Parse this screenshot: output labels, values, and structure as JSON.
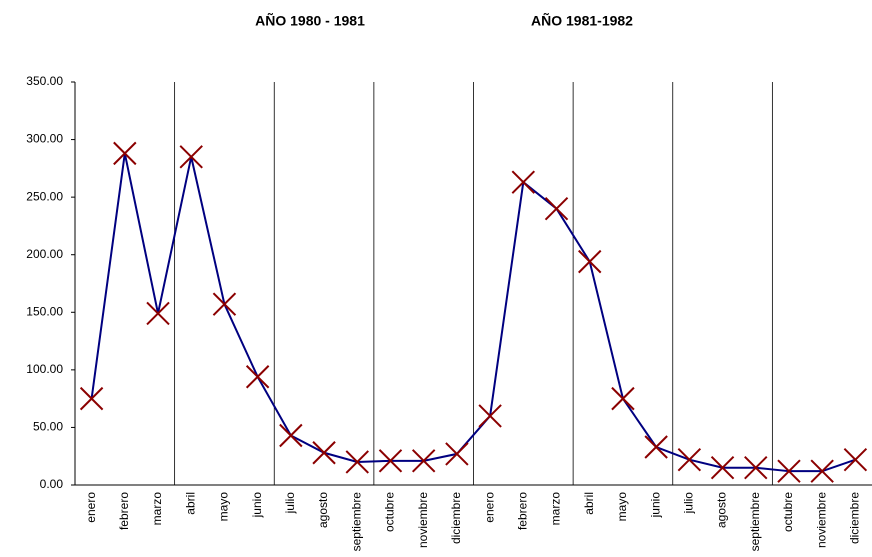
{
  "chart_data": {
    "type": "line",
    "annotations": [
      "AÑO 1980 - 1981",
      "AÑO 1981-1982"
    ],
    "categories": [
      "enero",
      "febrero",
      "marzo",
      "abril",
      "mayo",
      "junio",
      "julio",
      "agosto",
      "septiembre",
      "octubre",
      "noviembre",
      "diciembre",
      "enero",
      "febrero",
      "marzo",
      "abril",
      "mayo",
      "junio",
      "julio",
      "agosto",
      "septiembre",
      "octubre",
      "noviembre",
      "diciembre"
    ],
    "values": [
      75,
      288,
      149,
      285,
      157,
      94,
      43,
      28,
      20,
      21,
      21,
      27,
      60,
      263,
      240,
      194,
      75,
      33,
      22,
      15,
      15,
      12,
      12,
      22
    ],
    "color": "#000080",
    "marker_color": "#8b0000",
    "ylim": [
      0,
      350
    ],
    "yticks": [
      {
        "value": 0,
        "label": "0.00"
      },
      {
        "value": 50,
        "label": "50.00"
      },
      {
        "value": 100,
        "label": "100.00"
      },
      {
        "value": 150,
        "label": "150.00"
      },
      {
        "value": 200,
        "label": "200.00"
      },
      {
        "value": 250,
        "label": "250.00"
      },
      {
        "value": 300,
        "label": "300.00"
      },
      {
        "value": 350,
        "label": "350.00"
      }
    ],
    "grid": false
  }
}
